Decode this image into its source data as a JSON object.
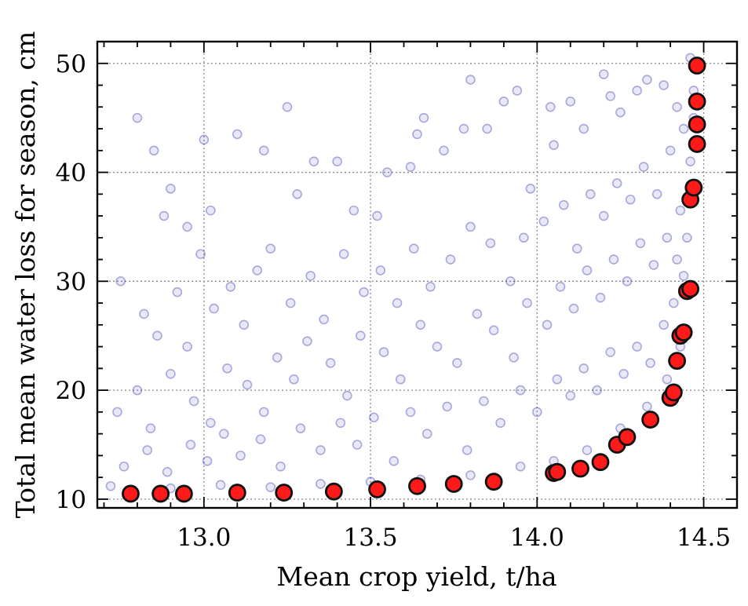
{
  "chart_data": {
    "type": "scatter",
    "title": "",
    "xlabel": "Mean crop yield, t/ha",
    "ylabel": "Total mean water loss for season, cm",
    "xlim": [
      12.68,
      14.6
    ],
    "ylim": [
      9.2,
      52.0
    ],
    "xticks": [
      13.0,
      13.5,
      14.0,
      14.5
    ],
    "xtick_labels": [
      "13.0",
      "13.5",
      "14.0",
      "14.5"
    ],
    "yticks": [
      10,
      20,
      30,
      40,
      50
    ],
    "ytick_labels": [
      "10",
      "20",
      "30",
      "40",
      "50"
    ],
    "grid": true,
    "legend": "none",
    "colors": {
      "cloud": "#1a1aa8",
      "pareto_fill": "#ff1a1a",
      "pareto_edge": "#111111",
      "grid": "#8a8a8a"
    },
    "series": [
      {
        "role": "sampled solutions (dense point cloud above the front)",
        "points": [
          [
            12.8,
            45.0
          ],
          [
            12.85,
            42.0
          ],
          [
            12.9,
            38.5
          ],
          [
            12.88,
            36.0
          ],
          [
            12.95,
            35.0
          ],
          [
            13.0,
            43.0
          ],
          [
            13.02,
            36.5
          ],
          [
            12.99,
            32.5
          ],
          [
            13.1,
            43.5
          ],
          [
            13.18,
            42.0
          ],
          [
            13.25,
            46.0
          ],
          [
            13.28,
            38.0
          ],
          [
            13.33,
            41.0
          ],
          [
            13.4,
            41.0
          ],
          [
            13.45,
            36.5
          ],
          [
            13.52,
            36.0
          ],
          [
            13.55,
            40.0
          ],
          [
            13.62,
            40.5
          ],
          [
            13.66,
            45.0
          ],
          [
            13.64,
            43.5
          ],
          [
            13.72,
            42.0
          ],
          [
            13.78,
            44.0
          ],
          [
            13.8,
            48.5
          ],
          [
            13.85,
            44.0
          ],
          [
            13.9,
            46.5
          ],
          [
            13.94,
            47.5
          ],
          [
            13.98,
            38.5
          ],
          [
            14.04,
            46.0
          ],
          [
            14.05,
            42.5
          ],
          [
            14.1,
            46.5
          ],
          [
            14.14,
            44.0
          ],
          [
            14.2,
            49.0
          ],
          [
            14.22,
            47.0
          ],
          [
            14.25,
            45.5
          ],
          [
            14.3,
            47.5
          ],
          [
            14.33,
            48.5
          ],
          [
            14.38,
            48.0
          ],
          [
            14.42,
            46.0
          ],
          [
            14.44,
            44.0
          ],
          [
            14.46,
            50.5
          ],
          [
            12.75,
            30.0
          ],
          [
            12.82,
            27.0
          ],
          [
            12.86,
            25.0
          ],
          [
            12.92,
            29.0
          ],
          [
            12.95,
            24.0
          ],
          [
            13.03,
            27.5
          ],
          [
            13.08,
            29.5
          ],
          [
            13.12,
            26.0
          ],
          [
            13.16,
            31.0
          ],
          [
            13.2,
            33.0
          ],
          [
            13.26,
            28.0
          ],
          [
            13.32,
            30.5
          ],
          [
            13.36,
            26.5
          ],
          [
            13.42,
            32.5
          ],
          [
            13.48,
            29.0
          ],
          [
            13.53,
            31.0
          ],
          [
            13.58,
            28.0
          ],
          [
            13.63,
            33.0
          ],
          [
            13.68,
            29.5
          ],
          [
            13.74,
            32.0
          ],
          [
            13.8,
            35.0
          ],
          [
            13.86,
            33.5
          ],
          [
            13.92,
            30.0
          ],
          [
            13.96,
            34.0
          ],
          [
            14.02,
            35.5
          ],
          [
            14.08,
            37.0
          ],
          [
            14.12,
            33.0
          ],
          [
            14.16,
            38.0
          ],
          [
            14.2,
            36.0
          ],
          [
            14.24,
            39.0
          ],
          [
            14.28,
            37.5
          ],
          [
            14.32,
            40.5
          ],
          [
            14.36,
            38.0
          ],
          [
            14.4,
            42.0
          ],
          [
            14.43,
            36.5
          ],
          [
            12.74,
            18.0
          ],
          [
            12.8,
            20.0
          ],
          [
            12.84,
            16.5
          ],
          [
            12.9,
            21.5
          ],
          [
            12.97,
            19.0
          ],
          [
            13.02,
            17.0
          ],
          [
            13.07,
            22.0
          ],
          [
            13.13,
            20.5
          ],
          [
            13.18,
            18.0
          ],
          [
            13.22,
            23.0
          ],
          [
            13.27,
            21.0
          ],
          [
            13.31,
            24.5
          ],
          [
            13.38,
            22.5
          ],
          [
            13.43,
            19.5
          ],
          [
            13.47,
            25.0
          ],
          [
            13.54,
            23.5
          ],
          [
            13.59,
            21.0
          ],
          [
            13.65,
            26.0
          ],
          [
            13.7,
            24.0
          ],
          [
            13.76,
            22.5
          ],
          [
            13.82,
            27.0
          ],
          [
            13.87,
            25.5
          ],
          [
            13.93,
            23.0
          ],
          [
            13.97,
            28.0
          ],
          [
            14.03,
            26.0
          ],
          [
            14.07,
            29.5
          ],
          [
            14.11,
            27.5
          ],
          [
            14.15,
            31.0
          ],
          [
            14.19,
            28.5
          ],
          [
            14.23,
            32.0
          ],
          [
            14.27,
            30.0
          ],
          [
            14.31,
            33.5
          ],
          [
            14.35,
            31.5
          ],
          [
            14.39,
            34.0
          ],
          [
            14.42,
            32.0
          ],
          [
            12.76,
            13.0
          ],
          [
            12.83,
            14.5
          ],
          [
            12.89,
            12.5
          ],
          [
            12.96,
            15.0
          ],
          [
            13.01,
            13.5
          ],
          [
            13.06,
            16.0
          ],
          [
            13.11,
            14.0
          ],
          [
            13.17,
            15.5
          ],
          [
            13.23,
            13.0
          ],
          [
            13.29,
            16.5
          ],
          [
            13.35,
            14.5
          ],
          [
            13.41,
            17.0
          ],
          [
            13.46,
            15.0
          ],
          [
            13.51,
            17.5
          ],
          [
            13.57,
            13.5
          ],
          [
            13.62,
            18.0
          ],
          [
            13.67,
            16.0
          ],
          [
            13.73,
            18.5
          ],
          [
            13.79,
            14.5
          ],
          [
            13.84,
            19.0
          ],
          [
            13.89,
            17.0
          ],
          [
            13.95,
            20.0
          ],
          [
            14.0,
            18.0
          ],
          [
            14.06,
            21.0
          ],
          [
            14.1,
            19.5
          ],
          [
            14.14,
            22.0
          ],
          [
            14.18,
            20.0
          ],
          [
            14.22,
            23.5
          ],
          [
            14.26,
            21.5
          ],
          [
            14.3,
            24.0
          ],
          [
            14.34,
            22.5
          ],
          [
            14.38,
            26.0
          ],
          [
            14.41,
            28.0
          ],
          [
            14.44,
            30.5
          ],
          [
            14.45,
            34.0
          ],
          [
            14.46,
            38.0
          ],
          [
            14.46,
            41.0
          ],
          [
            14.47,
            45.0
          ],
          [
            14.47,
            47.5
          ],
          [
            14.48,
            49.5
          ],
          [
            12.72,
            11.2
          ],
          [
            12.9,
            11.0
          ],
          [
            13.05,
            11.3
          ],
          [
            13.2,
            11.1
          ],
          [
            13.35,
            11.4
          ],
          [
            13.5,
            11.6
          ],
          [
            13.65,
            11.8
          ],
          [
            13.8,
            12.2
          ],
          [
            13.95,
            13.0
          ],
          [
            14.05,
            13.5
          ],
          [
            14.15,
            14.5
          ],
          [
            14.25,
            16.5
          ],
          [
            14.33,
            18.5
          ],
          [
            14.39,
            21.0
          ],
          [
            14.43,
            24.0
          ]
        ]
      },
      {
        "role": "highlighted front",
        "points": [
          [
            12.78,
            10.5
          ],
          [
            12.87,
            10.5
          ],
          [
            12.94,
            10.5
          ],
          [
            13.1,
            10.6
          ],
          [
            13.24,
            10.6
          ],
          [
            13.39,
            10.7
          ],
          [
            13.52,
            10.9
          ],
          [
            13.64,
            11.2
          ],
          [
            13.75,
            11.4
          ],
          [
            13.87,
            11.6
          ],
          [
            14.05,
            12.4
          ],
          [
            14.06,
            12.5
          ],
          [
            14.13,
            12.8
          ],
          [
            14.19,
            13.4
          ],
          [
            14.24,
            15.0
          ],
          [
            14.27,
            15.7
          ],
          [
            14.34,
            17.3
          ],
          [
            14.4,
            19.3
          ],
          [
            14.41,
            19.8
          ],
          [
            14.42,
            22.7
          ],
          [
            14.43,
            25.0
          ],
          [
            14.44,
            25.3
          ],
          [
            14.45,
            29.1
          ],
          [
            14.46,
            29.3
          ],
          [
            14.46,
            37.5
          ],
          [
            14.47,
            38.6
          ],
          [
            14.48,
            42.6
          ],
          [
            14.48,
            44.4
          ],
          [
            14.48,
            46.5
          ],
          [
            14.48,
            49.8
          ]
        ]
      }
    ]
  }
}
